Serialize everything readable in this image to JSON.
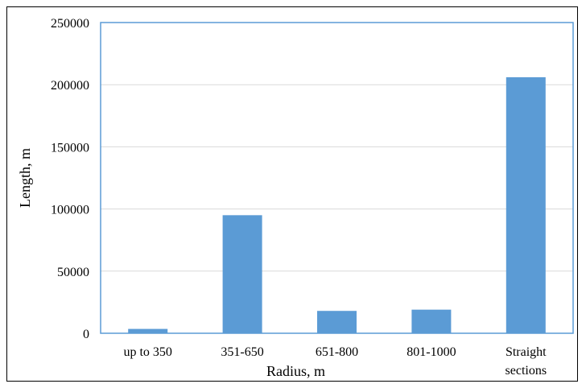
{
  "chart_data": {
    "type": "bar",
    "categories": [
      "up to 350",
      "351-650",
      "651-800",
      "801-1000",
      "Straight sections"
    ],
    "category_label_lines": [
      [
        "up to 350"
      ],
      [
        "351-650"
      ],
      [
        "651-800"
      ],
      [
        "801-1000"
      ],
      [
        "Straight",
        "sections"
      ]
    ],
    "values": [
      3500,
      95000,
      18000,
      19000,
      206000
    ],
    "xlabel": "Radius, m",
    "ylabel": "Length, m",
    "ylim": [
      0,
      250000
    ],
    "yticks": [
      0,
      50000,
      100000,
      150000,
      200000,
      250000
    ],
    "ytick_labels": [
      "0",
      "50000",
      "100000",
      "150000",
      "200000",
      "250000"
    ],
    "grid": true,
    "bar_color": "#5b9bd5",
    "grid_color": "#d9d9d9",
    "plot_border_color": "#5b9bd5"
  }
}
